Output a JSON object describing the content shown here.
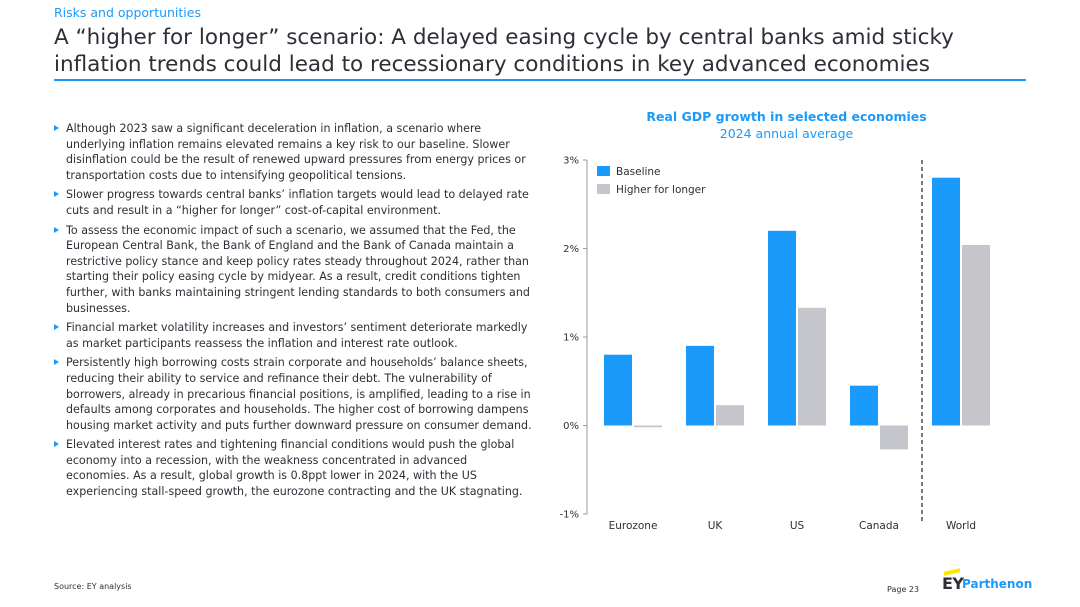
{
  "section": "Risks and opportunities",
  "title": "A “higher for longer” scenario: A delayed easing cycle by central banks amid sticky inflation trends could lead to recessionary conditions in key advanced economies",
  "bullets": [
    "Although 2023 saw a significant deceleration in inflation, a scenario where underlying inflation remains elevated remains a key risk to our baseline. Slower disinflation could be the result of renewed upward pressures from energy prices or transportation costs due to intensifying geopolitical tensions.",
    "Slower progress towards central banks’ inflation targets would lead to delayed rate cuts and result in a “higher for longer” cost-of-capital environment.",
    "To assess the economic impact of such a scenario, we assumed that the Fed, the European Central Bank, the Bank of England and the Bank of Canada maintain a restrictive policy stance and keep policy rates steady throughout 2024, rather than starting their policy easing cycle by midyear. As a result, credit conditions tighten further, with banks maintaining stringent lending standards to both consumers and businesses.",
    "Financial market volatility increases and investors’ sentiment deteriorate markedly as market participants reassess the inflation and interest rate outlook.",
    "Persistently high borrowing costs strain corporate and households’ balance sheets, reducing their ability to service and refinance their debt. The vulnerability of borrowers, already in precarious financial positions, is amplified, leading to a rise in defaults among corporates and households. The higher cost of borrowing dampens housing market activity and puts further downward pressure on consumer demand.",
    "Elevated interest rates and tightening financial conditions would push the global economy into a recession, with the weakness concentrated in advanced economies. As a result, global growth is 0.8ppt lower in 2024, with the US experiencing stall-speed growth, the eurozone contracting and the UK stagnating."
  ],
  "footer": {
    "source": "Source:  EY analysis",
    "page": "Page 23"
  },
  "logo": {
    "ey": "EY",
    "brand": "Parthenon"
  },
  "colors": {
    "accent": "#1a9afa",
    "baseline": "#1a9afa",
    "higher": "#c4c6cb",
    "text": "#2e2e38",
    "logo_yellow": "#ffe600"
  },
  "chart_data": {
    "type": "bar",
    "title": "Real GDP growth in selected economies",
    "subtitle": "2024 annual average",
    "categories": [
      "Eurozone",
      "UK",
      "US",
      "Canada",
      "World"
    ],
    "series": [
      {
        "name": "Baseline",
        "values": [
          0.8,
          0.9,
          2.2,
          0.45,
          2.8
        ]
      },
      {
        "name": "Higher for longer",
        "values": [
          -0.02,
          0.23,
          1.33,
          -0.27,
          2.04
        ]
      }
    ],
    "ylim": [
      -1,
      3
    ],
    "yticks": [
      -1,
      0,
      1,
      2,
      3
    ],
    "ytick_labels": [
      "-1%",
      "0%",
      "1%",
      "2%",
      "3%"
    ],
    "xlabel": "",
    "ylabel": "",
    "legend": "top-left",
    "grid": false,
    "separator_before_category": "World"
  }
}
